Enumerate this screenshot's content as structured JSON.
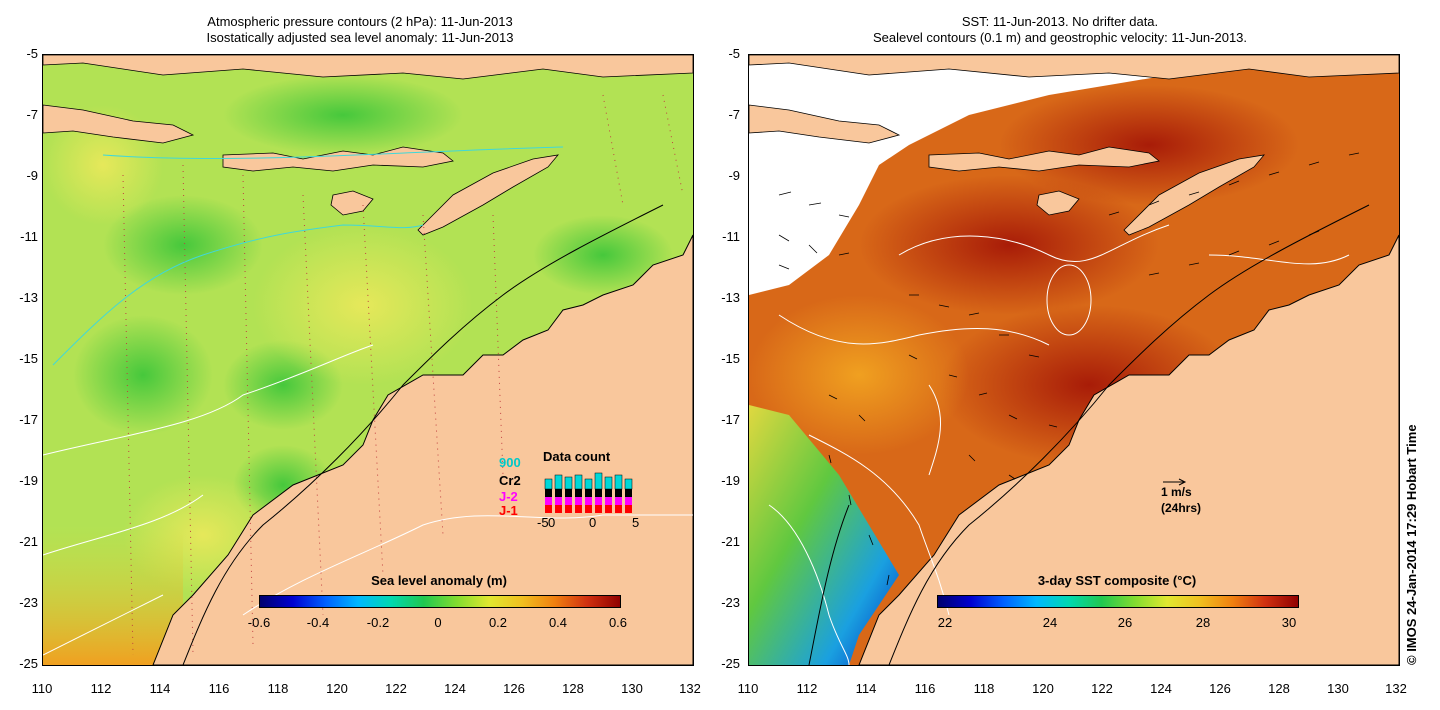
{
  "left_panel": {
    "title_line1": "Atmospheric pressure contours (2 hPa): 11-Jun-2013",
    "title_line2": "Isostatically adjusted sea level anomaly: 11-Jun-2013",
    "colorbar": {
      "title": "Sea level anomaly (m)",
      "labels": [
        "-0.6",
        "-0.4",
        "-0.2",
        "0",
        "0.2",
        "0.4",
        "0.6"
      ]
    },
    "data_count": {
      "title": "Data count",
      "missions": [
        "900",
        "Cr2",
        "J-2",
        "J-1"
      ],
      "mission_colors": [
        "#00c8c8",
        "#000000",
        "#ff00ff",
        "#ff0000"
      ],
      "x_labels": [
        "-5",
        "0",
        "5"
      ],
      "x_extra": "0"
    }
  },
  "right_panel": {
    "title_line1": "SST: 11-Jun-2013. No drifter data.",
    "title_line2": "Sealevel contours (0.1 m) and geostrophic velocity: 11-Jun-2013.",
    "colorbar": {
      "title": "3-day SST composite (°C)",
      "labels": [
        "22",
        "24",
        "26",
        "28",
        "30"
      ]
    },
    "velocity_key": {
      "label": "1 m/s",
      "sublabel": "(24hrs)"
    }
  },
  "axes": {
    "y_labels": [
      "-5",
      "-7",
      "-9",
      "-11",
      "-13",
      "-15",
      "-17",
      "-19",
      "-21",
      "-23",
      "-25"
    ],
    "x_labels": [
      "110",
      "112",
      "114",
      "116",
      "118",
      "120",
      "122",
      "124",
      "126",
      "128",
      "130",
      "132"
    ]
  },
  "credit": "© IMOS 24-Jan-2014 17:29 Hobart Time",
  "colors": {
    "land": "#f9c79c",
    "sea_left": "#a8e050",
    "sea_right": "#c0420a"
  }
}
